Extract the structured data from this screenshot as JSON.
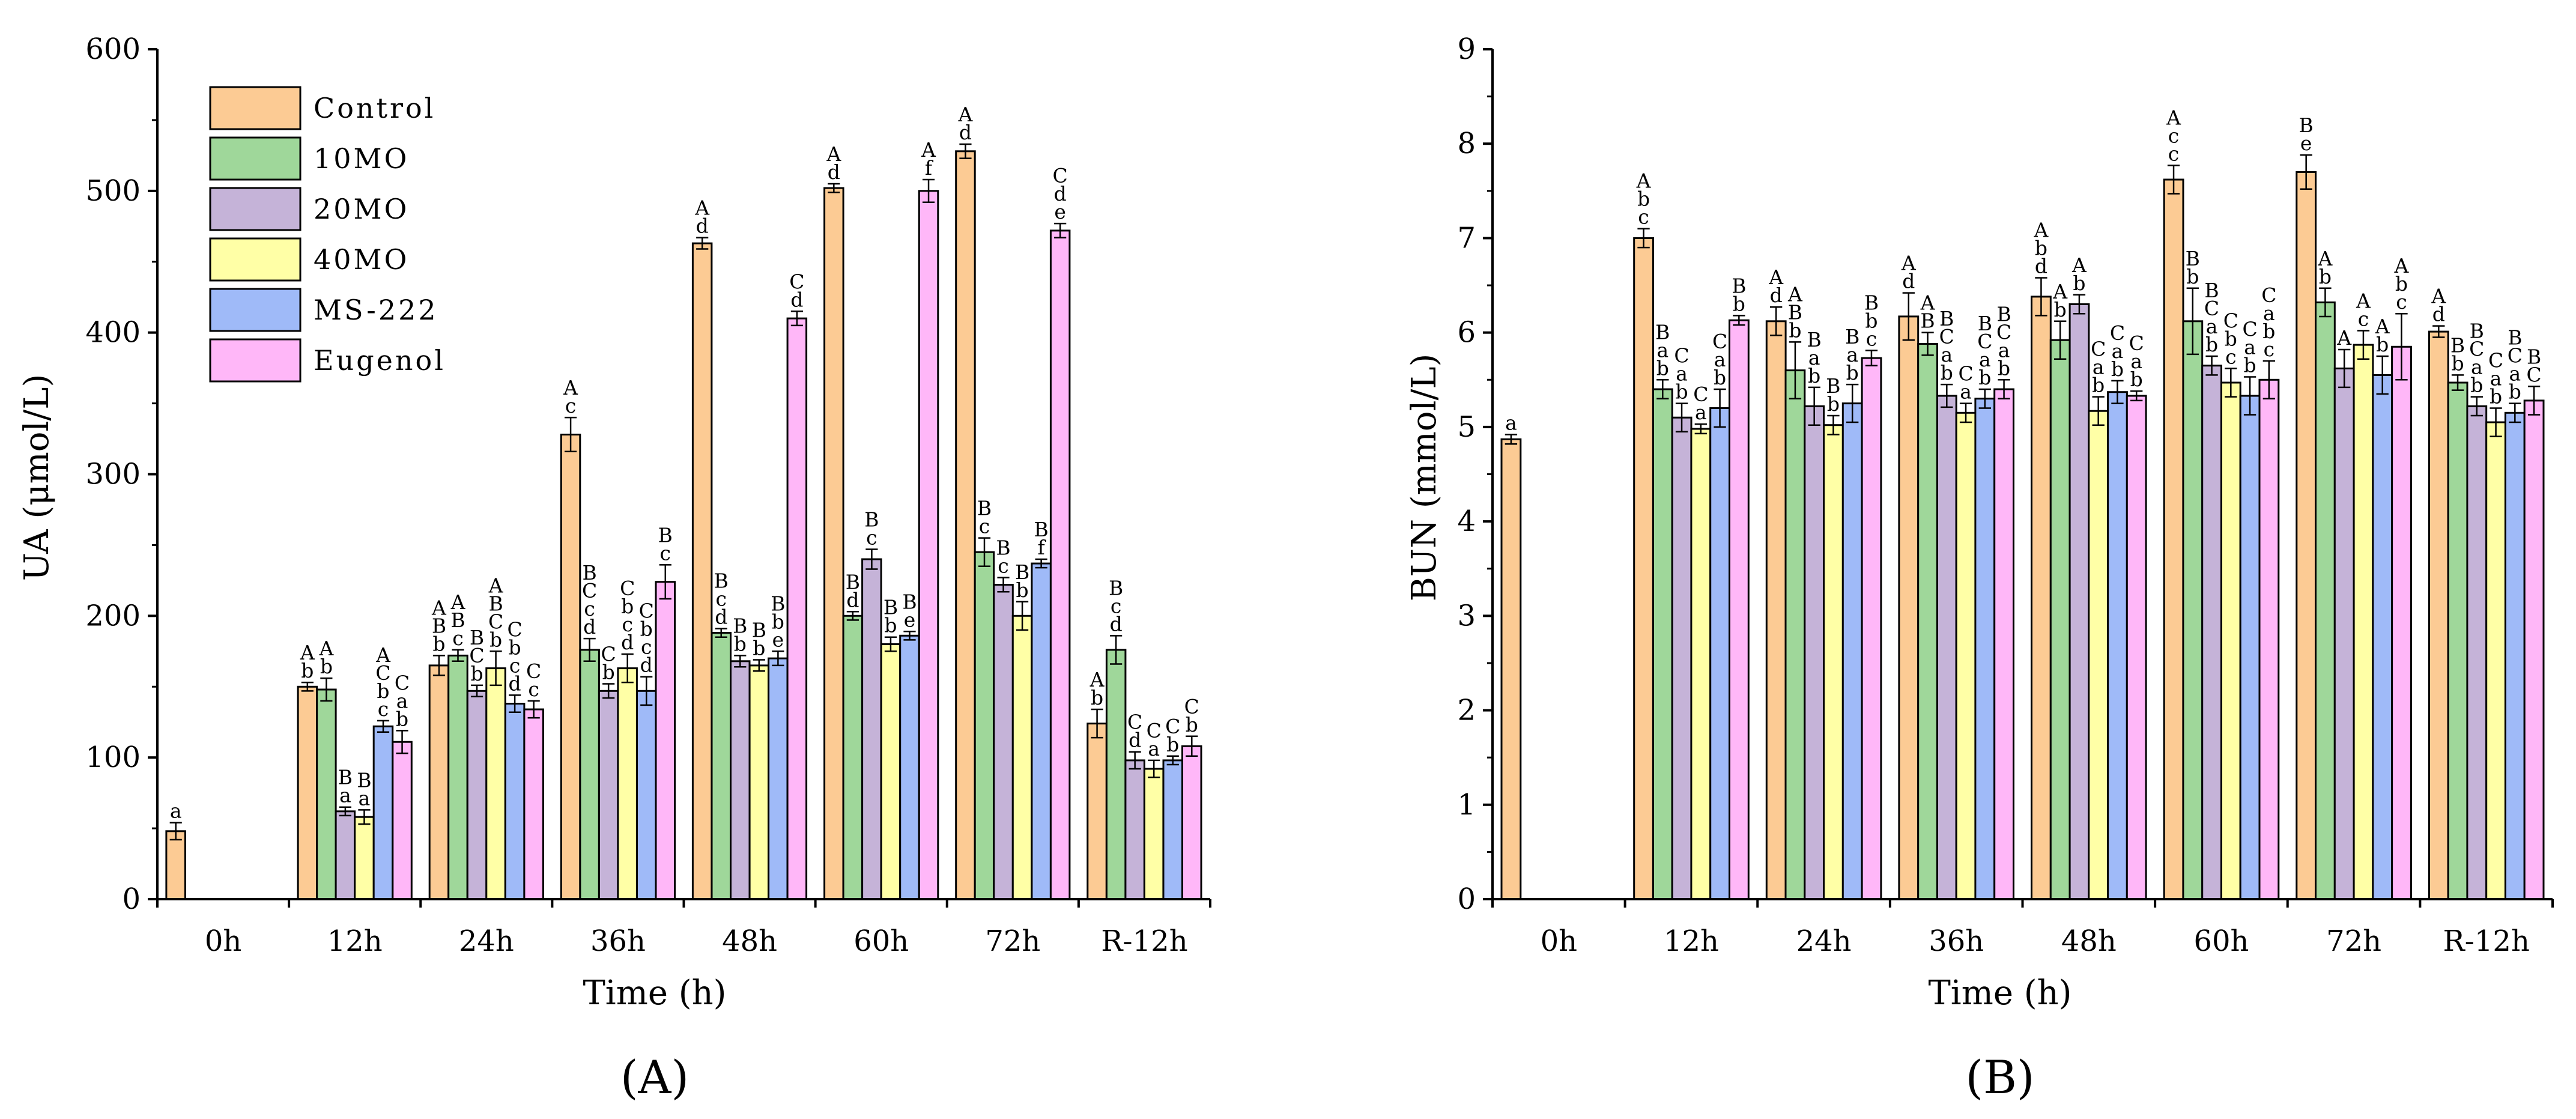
{
  "colors": {
    "Control": "#fccb94",
    "10MO": "#9fd79a",
    "20MO": "#c5b3d8",
    "40MO": "#ffffa6",
    "MS-222": "#9fbaf8",
    "Eugenol": "#ffb7f8"
  },
  "chart_data": [
    {
      "type": "bar",
      "panel_label": "(A)",
      "xlabel": "Time (h)",
      "ylabel": "UA (μmol/L)",
      "ylim": [
        0,
        600
      ],
      "yticks": [
        "0",
        "100",
        "200",
        "300",
        "400",
        "500",
        "600"
      ],
      "categories": [
        "0h",
        "12h",
        "24h",
        "36h",
        "48h",
        "60h",
        "72h",
        "R-12h"
      ],
      "legend": [
        "Control",
        "10MO",
        "20MO",
        "40MO",
        "MS-222",
        "Eugenol"
      ],
      "legend_position": "top-left",
      "series": [
        {
          "name": "Control",
          "values": [
            48,
            150,
            165,
            328,
            463,
            502,
            528,
            124
          ],
          "errors": [
            6,
            3,
            7,
            12,
            4,
            3,
            5,
            10
          ],
          "labels": [
            "a",
            "A b",
            "A B b",
            "A c",
            "A d",
            "A d",
            "A d",
            "A b"
          ]
        },
        {
          "name": "10MO",
          "values": [
            null,
            148,
            172,
            176,
            188,
            200,
            245,
            176
          ],
          "errors": [
            null,
            8,
            4,
            8,
            3,
            3,
            10,
            10
          ],
          "labels": [
            "",
            "A b",
            "A B c",
            "B C c d",
            "B c d",
            "B d",
            "B c",
            "B c d"
          ]
        },
        {
          "name": "20MO",
          "values": [
            null,
            62,
            147,
            147,
            168,
            240,
            222,
            98
          ],
          "errors": [
            null,
            3,
            4,
            5,
            4,
            7,
            5,
            6
          ],
          "labels": [
            "",
            "B a",
            "B C b",
            "C b",
            "B b",
            "B c",
            "B c",
            "C d"
          ]
        },
        {
          "name": "40MO",
          "values": [
            null,
            58,
            163,
            163,
            165,
            180,
            200,
            92
          ],
          "errors": [
            null,
            5,
            12,
            10,
            4,
            5,
            10,
            6
          ],
          "labels": [
            "",
            "B a",
            "A B C b",
            "C b c d",
            "B b",
            "B b",
            "B b",
            "C a"
          ]
        },
        {
          "name": "MS-222",
          "values": [
            null,
            122,
            138,
            147,
            170,
            186,
            237,
            98
          ],
          "errors": [
            null,
            4,
            6,
            10,
            5,
            3,
            3,
            3
          ],
          "labels": [
            "",
            "A C b c",
            "C b c d",
            "C b c d",
            "B b e",
            "B e",
            "B f",
            "C b"
          ]
        },
        {
          "name": "Eugenol",
          "values": [
            null,
            111,
            134,
            224,
            410,
            500,
            472,
            108
          ],
          "errors": [
            null,
            8,
            6,
            12,
            5,
            8,
            5,
            7
          ],
          "labels": [
            "",
            "C a b",
            "C c",
            "B c",
            "C d",
            "A f",
            "C d e",
            "C b"
          ]
        }
      ]
    },
    {
      "type": "bar",
      "panel_label": "(B)",
      "xlabel": "Time (h)",
      "ylabel": "BUN (mmol/L)",
      "ylim": [
        0,
        9
      ],
      "yticks": [
        "0",
        "1",
        "2",
        "3",
        "4",
        "5",
        "6",
        "7",
        "8",
        "9"
      ],
      "categories": [
        "0h",
        "12h",
        "24h",
        "36h",
        "48h",
        "60h",
        "72h",
        "R-12h"
      ],
      "series": [
        {
          "name": "Control",
          "values": [
            4.87,
            7.0,
            6.12,
            6.17,
            6.38,
            7.62,
            7.7,
            6.01
          ],
          "errors": [
            0.05,
            0.1,
            0.15,
            0.25,
            0.2,
            0.15,
            0.18,
            0.06
          ],
          "labels": [
            "a",
            "A b c",
            "A d",
            "A d",
            "A b d",
            "A c c",
            "B e",
            "A d"
          ]
        },
        {
          "name": "10MO",
          "values": [
            null,
            5.4,
            5.6,
            5.88,
            5.92,
            6.12,
            6.32,
            5.47
          ],
          "errors": [
            null,
            0.1,
            0.3,
            0.12,
            0.2,
            0.35,
            0.15,
            0.08
          ],
          "labels": [
            "",
            "B a b",
            "A B b",
            "A B",
            "A b",
            "B b",
            "A b",
            "B b"
          ]
        },
        {
          "name": "20MO",
          "values": [
            null,
            5.1,
            5.22,
            5.33,
            6.3,
            5.65,
            5.62,
            5.22
          ],
          "errors": [
            null,
            0.15,
            0.2,
            0.12,
            0.1,
            0.1,
            0.2,
            0.1
          ],
          "labels": [
            "",
            "C a b",
            "B a b",
            "B C a b",
            "A b",
            "B C a b",
            "A",
            "B C a b"
          ]
        },
        {
          "name": "40MO",
          "values": [
            null,
            4.98,
            5.02,
            5.15,
            5.17,
            5.47,
            5.87,
            5.05
          ],
          "errors": [
            null,
            0.05,
            0.1,
            0.1,
            0.15,
            0.15,
            0.15,
            0.15
          ],
          "labels": [
            "",
            "C a",
            "B b",
            "C a",
            "C a b",
            "C b c",
            "A c",
            "C a b"
          ]
        },
        {
          "name": "MS-222",
          "values": [
            null,
            5.2,
            5.25,
            5.3,
            5.37,
            5.33,
            5.55,
            5.15
          ],
          "errors": [
            null,
            0.2,
            0.2,
            0.1,
            0.12,
            0.2,
            0.2,
            0.1
          ],
          "labels": [
            "",
            "C a b",
            "B a b",
            "B C a b",
            "C a b",
            "C a b",
            "A b",
            "B C a b"
          ]
        },
        {
          "name": "Eugenol",
          "values": [
            null,
            6.13,
            5.73,
            5.4,
            5.33,
            5.5,
            5.85,
            5.28
          ],
          "errors": [
            null,
            0.05,
            0.08,
            0.1,
            0.05,
            0.2,
            0.35,
            0.15
          ],
          "labels": [
            "",
            "B b",
            "B b c",
            "B C a b",
            "C a b",
            "C a b c",
            "A b c",
            "B C"
          ]
        }
      ]
    }
  ]
}
